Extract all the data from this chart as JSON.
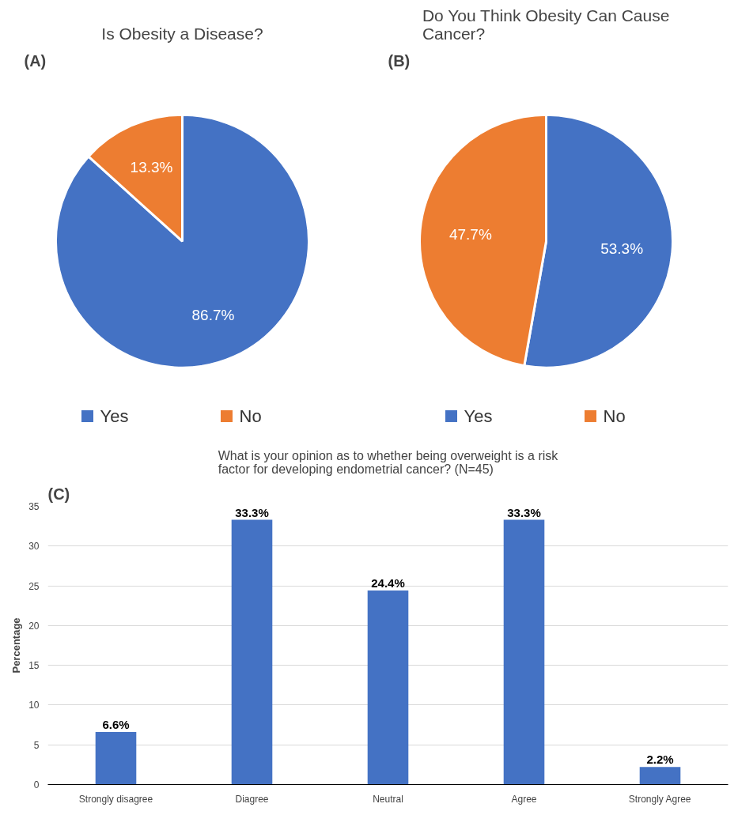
{
  "chart_data": [
    {
      "type": "pie",
      "title": "Is Obesity a Disease?",
      "annotations": [
        "(A)"
      ],
      "categories": [
        "Yes",
        "No"
      ],
      "values": [
        86.7,
        13.3
      ],
      "colors": [
        "#4472c4",
        "#ed7d31"
      ],
      "value_labels": [
        "86.7%",
        "13.3%"
      ],
      "legend": "bottom"
    },
    {
      "type": "pie",
      "title": "Do You Think Obesity Can Cause\nCancer?",
      "annotations": [
        "(B)"
      ],
      "categories": [
        "Yes",
        "No"
      ],
      "values": [
        53.3,
        47.7
      ],
      "colors": [
        "#4472c4",
        "#ed7d31"
      ],
      "value_labels": [
        "53.3%",
        "47.7%"
      ],
      "legend": "bottom"
    },
    {
      "type": "bar",
      "title": "What is your opinion as to whether being overweight is a risk\nfactor for developing endometrial cancer? (N=45)",
      "annotations": [
        "(C)"
      ],
      "ylabel": "Percentage",
      "categories": [
        "Strongly disagree",
        "Diagree",
        "Neutral",
        "Agree",
        "Strongly Agree"
      ],
      "values": [
        6.6,
        33.3,
        24.4,
        33.3,
        2.2
      ],
      "color": "#4472c4",
      "value_labels": [
        "6.6%",
        "33.3%",
        "24.4%",
        "33.3%",
        "2.2%"
      ],
      "ylim": [
        0,
        35
      ],
      "yticks": [
        0,
        5,
        10,
        15,
        20,
        25,
        30,
        35
      ],
      "grid": "y"
    }
  ]
}
